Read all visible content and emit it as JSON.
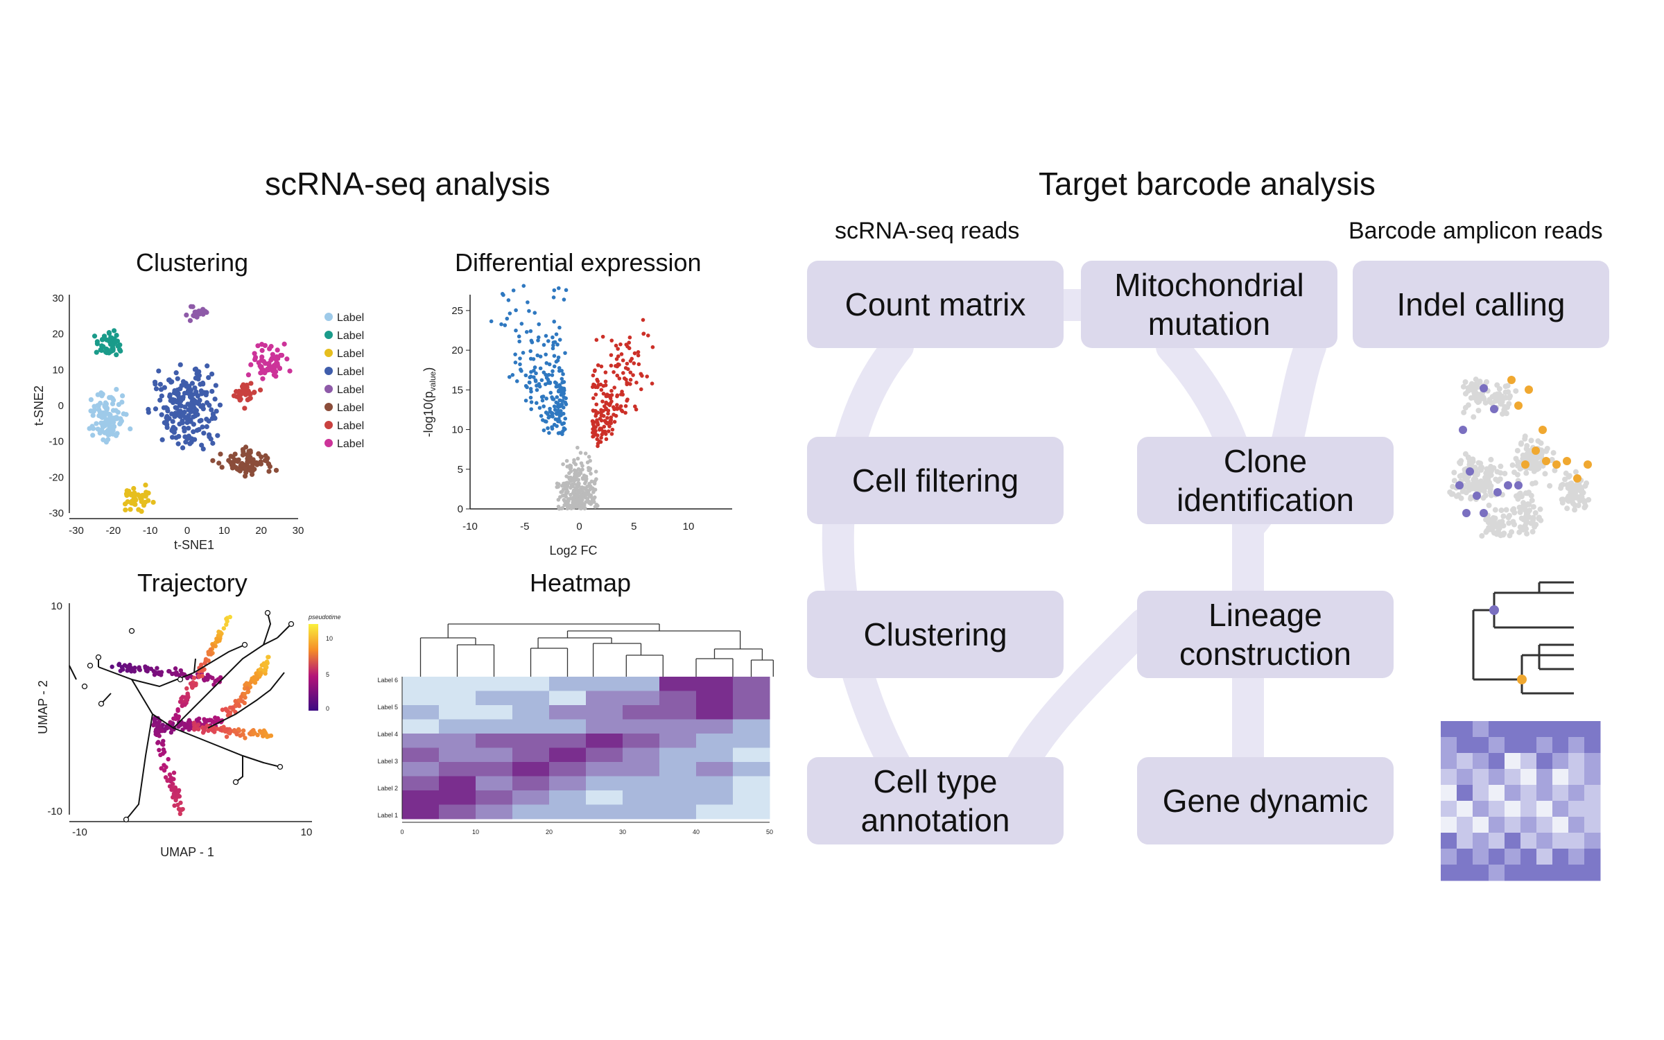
{
  "left": {
    "title": "scRNA-seq analysis",
    "panels": {
      "clustering": {
        "title": "Clustering",
        "xlabel": "t-SNE1",
        "ylabel": "t-SNE2",
        "xticks": [
          "-30",
          "-20",
          "-10",
          "0",
          "10",
          "20",
          "30"
        ],
        "yticks": [
          "30",
          "20",
          "10",
          "0",
          "-10",
          "-20",
          "-30"
        ],
        "legend": [
          "Label",
          "Label",
          "Label",
          "Label",
          "Label",
          "Label",
          "Label",
          "Label"
        ],
        "colors": [
          "#9ecae9",
          "#1a9b8a",
          "#e6be1e",
          "#3f5dab",
          "#8e5aa8",
          "#8b4d3a",
          "#c9413f",
          "#cc3399"
        ]
      },
      "differential": {
        "title": "Differential expression",
        "xlabel": "Log2 FC",
        "ylabel_main": "-log10(p",
        "ylabel_sub": "value",
        "ylabel_end": ")",
        "xticks": [
          "-10",
          "-5",
          "0",
          "5",
          "10"
        ],
        "yticks": [
          "25",
          "20",
          "15",
          "10",
          "5",
          "0"
        ],
        "colors": {
          "down": "#2f78c0",
          "up": "#cc3028",
          "ns": "#bbbbbb"
        }
      },
      "trajectory": {
        "title": "Trajectory",
        "xlabel": "UMAP - 1",
        "ylabel": "UMAP - 2",
        "xticks": [
          "-10",
          "10"
        ],
        "yticks": [
          "10",
          "-10"
        ],
        "colorbar_label": "pseudotime",
        "colorbar_ticks": [
          "10",
          "5",
          "0"
        ]
      },
      "heatmap": {
        "title": "Heatmap",
        "row_labels": [
          "Label 6",
          "Label 5",
          "Label 4",
          "Label 3",
          "Label 2",
          "Label 1"
        ],
        "xticks": [
          "0",
          "10",
          "20",
          "30",
          "40",
          "50"
        ]
      }
    }
  },
  "right": {
    "title": "Target barcode analysis",
    "col_headers": {
      "left": "scRNA-seq reads",
      "right": "Barcode amplicon reads"
    },
    "boxes": {
      "count_matrix": "Count matrix",
      "mito_line1": "Mitochondrial",
      "mito_line2": "mutation",
      "indel": "Indel calling",
      "cell_filtering": "Cell filtering",
      "clone_line1": "Clone",
      "clone_line2": "identification",
      "clustering": "Clustering",
      "lineage_line1": "Lineage",
      "lineage_line2": "construction",
      "celltype_line1": "Cell type",
      "celltype_line2": "annotation",
      "gene_dynamic": "Gene dynamic"
    },
    "colors": {
      "box": "#dcd9ec",
      "flow": "#e6e4f3",
      "accent_purple": "#7a6fc0",
      "accent_orange": "#f0a830",
      "grey_dot": "#d8d8d8"
    }
  }
}
